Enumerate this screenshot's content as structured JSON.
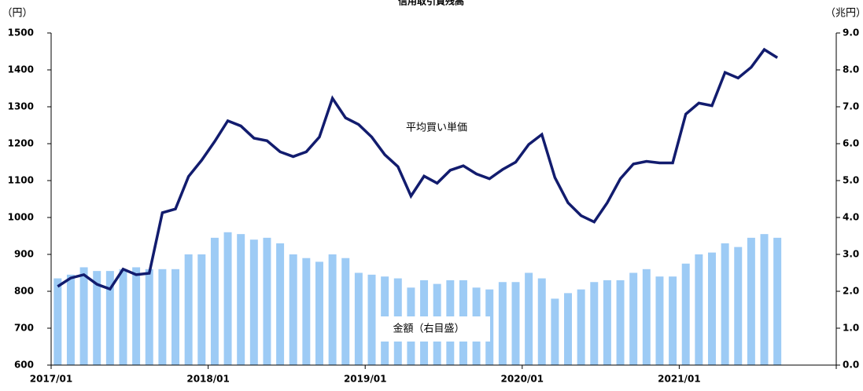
{
  "chart_data": {
    "type": "bar_line",
    "title": "信用取引買残高",
    "y_unit": "（円）",
    "y2_unit": "（兆円）",
    "categories": [
      "2017/01",
      null,
      null,
      null,
      null,
      null,
      null,
      null,
      null,
      null,
      null,
      null,
      "2018/01",
      null,
      null,
      null,
      null,
      null,
      null,
      null,
      null,
      null,
      null,
      null,
      "2019/01",
      null,
      null,
      null,
      null,
      null,
      null,
      null,
      null,
      null,
      null,
      null,
      "2020/01",
      null,
      null,
      null,
      null,
      null,
      null,
      null,
      null,
      null,
      null,
      null,
      "2021/01",
      null,
      null,
      null,
      null,
      null,
      null,
      null,
      null,
      null,
      null,
      null
    ],
    "series": [
      {
        "name": "金額（右目盛）",
        "type": "bar",
        "axis": "y2",
        "color": "#9dcbf5",
        "values": [
          2.35,
          2.45,
          2.65,
          2.55,
          2.55,
          2.6,
          2.65,
          2.6,
          2.6,
          2.6,
          3.0,
          3.0,
          3.45,
          3.6,
          3.55,
          3.4,
          3.45,
          3.3,
          3.0,
          2.9,
          2.8,
          3.0,
          2.9,
          2.5,
          2.45,
          2.4,
          2.35,
          2.1,
          2.3,
          2.2,
          2.3,
          2.3,
          2.1,
          2.05,
          2.25,
          2.25,
          2.5,
          2.35,
          1.8,
          1.95,
          2.05,
          2.25,
          2.3,
          2.3,
          2.5,
          2.6,
          2.4,
          2.4,
          2.75,
          3.0,
          3.05,
          3.3,
          3.2,
          3.45,
          3.55,
          3.45,
          null,
          null,
          null,
          null
        ]
      },
      {
        "name": "平均買い単価",
        "type": "line",
        "axis": "y",
        "color": "#121c6e",
        "values": [
          813,
          836,
          845,
          819,
          806,
          860,
          845,
          849,
          1013,
          1023,
          1111,
          1155,
          1206,
          1262,
          1248,
          1215,
          1208,
          1178,
          1165,
          1178,
          1218,
          1323,
          1270,
          1252,
          1218,
          1170,
          1138,
          1058,
          1112,
          1093,
          1128,
          1140,
          1118,
          1105,
          1130,
          1150,
          1198,
          1225,
          1108,
          1040,
          1005,
          988,
          1040,
          1105,
          1145,
          1152,
          1148,
          1148,
          1280,
          1310,
          1303,
          1393,
          1378,
          1407,
          1455,
          1433,
          null,
          null,
          null,
          null
        ]
      }
    ],
    "ylim": [
      600,
      1500
    ],
    "yticks": [
      600,
      700,
      800,
      900,
      1000,
      1100,
      1200,
      1300,
      1400,
      1500
    ],
    "y2lim": [
      0,
      9
    ],
    "y2ticks": [
      {
        "value": 0,
        "label": "0.0"
      },
      {
        "value": 1,
        "label": "1.0"
      },
      {
        "value": 2,
        "label": "2.0"
      },
      {
        "value": 3,
        "label": "3.0"
      },
      {
        "value": 4,
        "label": "4.0"
      },
      {
        "value": 5,
        "label": "5.0"
      },
      {
        "value": 6,
        "label": "6.0"
      },
      {
        "value": 7,
        "label": "7.0"
      },
      {
        "value": 8,
        "label": "8.0"
      },
      {
        "value": 9,
        "label": "9.0"
      }
    ]
  }
}
